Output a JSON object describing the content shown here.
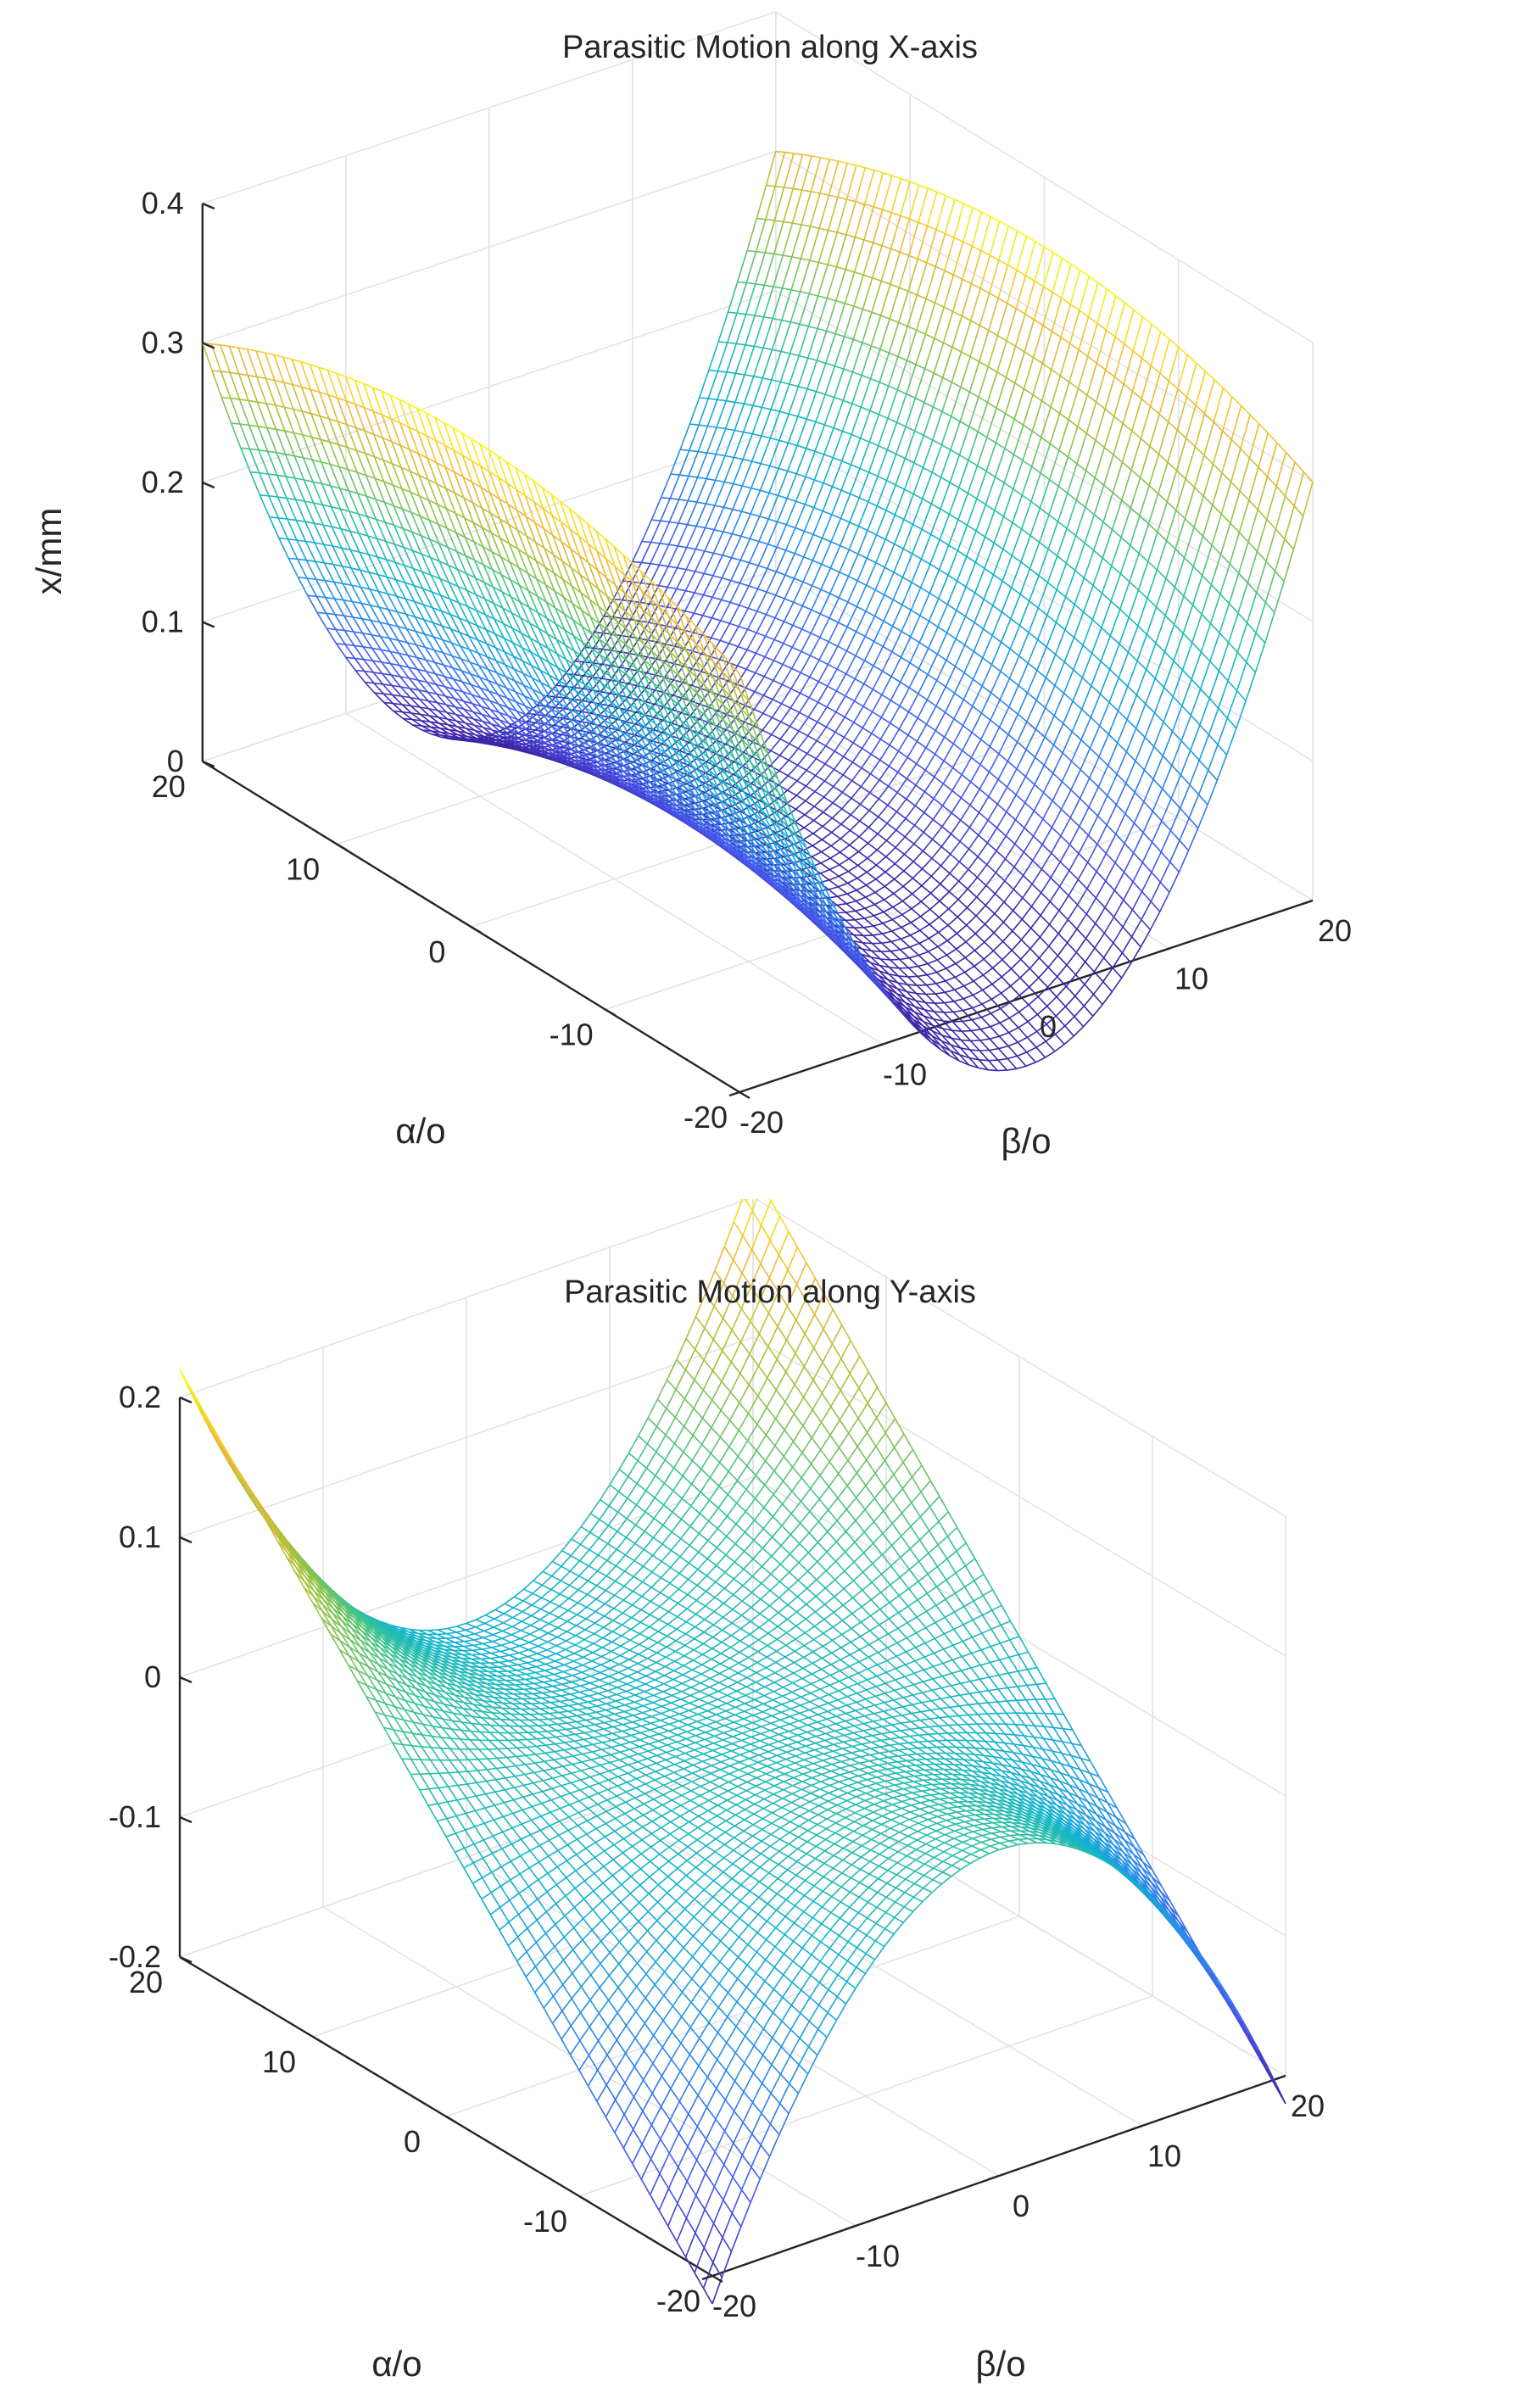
{
  "chart_data": [
    {
      "type": "surface",
      "surface": "mesh",
      "title": "Parasitic Motion along X-axis",
      "xlabel": "β/o",
      "ylabel": "α/o",
      "zlabel": "x/mm",
      "xlim": [
        -20,
        20
      ],
      "ylim": [
        -20,
        20
      ],
      "zlim": [
        0,
        0.4
      ],
      "xticks": [
        "-20",
        "-10",
        "0",
        "10",
        "20"
      ],
      "yticks": [
        "-20",
        "-10",
        "0",
        "10",
        "20"
      ],
      "zticks": [
        "0",
        "0.1",
        "0.2",
        "0.3",
        "0.4"
      ],
      "function": "z = 0.35 * (sin(beta)/sin(20deg))^2 - 0.05 * (alpha/20)^2",
      "sample_values": {
        "z_at_beta_0": 0.0,
        "z_at_beta_pm20_alpha_0": 0.35,
        "z_at_beta_pm20_alpha_pm20": 0.3
      },
      "colormap": "parula",
      "grid": true
    },
    {
      "type": "surface",
      "surface": "mesh",
      "title": "Parasitic Motion along Y-axis",
      "xlabel": "β/o",
      "ylabel": "α/o",
      "zlabel": "",
      "xlim": [
        -20,
        20
      ],
      "ylim": [
        -20,
        20
      ],
      "zlim": [
        -0.2,
        0.2
      ],
      "xticks": [
        "-20",
        "-10",
        "0",
        "10",
        "20"
      ],
      "yticks": [
        "-20",
        "-10",
        "0",
        "10",
        "20"
      ],
      "zticks": [
        "-0.2",
        "-0.1",
        "0",
        "0.1",
        "0.2"
      ],
      "function": "z = 0.22 * (alpha/20) * (beta/20)^2 * 4 - 0.06 * (alpha/20) ... saddle",
      "sample_values": {
        "z_at_alpha_20_beta_pm20": 0.22,
        "z_at_alpha_m20_beta_pm20": -0.22,
        "z_at_beta_0": 0.0
      },
      "colormap": "parula",
      "grid": true
    }
  ]
}
